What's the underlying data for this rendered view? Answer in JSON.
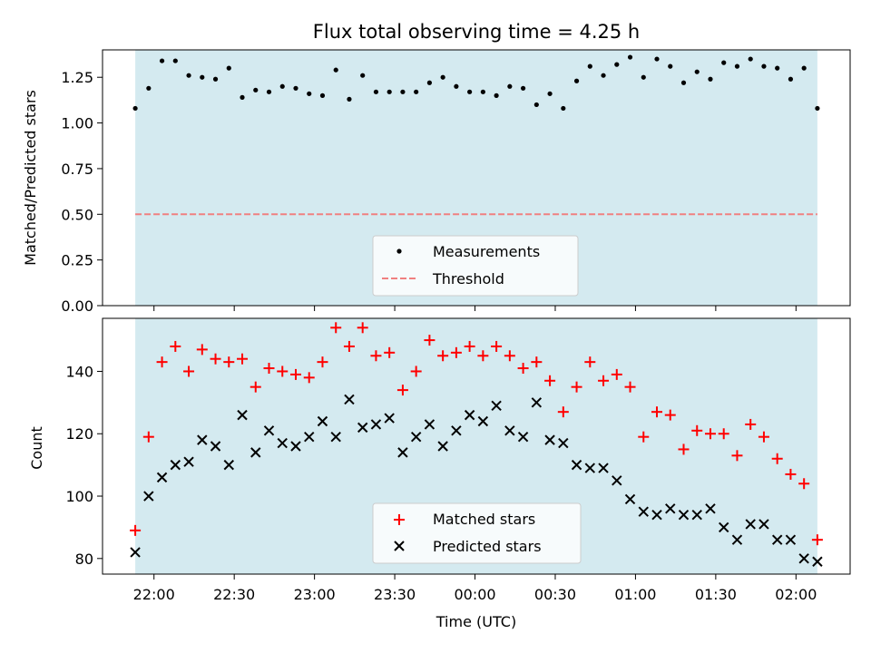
{
  "chart_data": [
    {
      "type": "scatter",
      "title": "Flux total observing time = 4.25 h",
      "xlabel": "",
      "ylabel": "Matched/Predicted stars",
      "ylim": [
        0,
        1.4
      ],
      "y_ticks": [
        0.0,
        0.25,
        0.5,
        0.75,
        1.0,
        1.25
      ],
      "y_tick_labels": [
        "0.00",
        "0.25",
        "0.50",
        "0.75",
        "1.00",
        "1.25"
      ],
      "threshold": 0.5,
      "legend_position": "bottom-center",
      "legend": [
        {
          "label": "Measurements",
          "marker": "dot",
          "color": "#000000"
        },
        {
          "label": "Threshold",
          "marker": "dashed-line",
          "color": "#f08080"
        }
      ],
      "series": [
        {
          "name": "Measurements",
          "x": [
            "21:53",
            "21:58",
            "22:03",
            "22:08",
            "22:13",
            "22:18",
            "22:23",
            "22:28",
            "22:33",
            "22:38",
            "22:43",
            "22:48",
            "22:53",
            "22:58",
            "23:03",
            "23:08",
            "23:13",
            "23:18",
            "23:23",
            "23:28",
            "23:33",
            "23:38",
            "23:43",
            "23:48",
            "23:53",
            "23:58",
            "00:03",
            "00:08",
            "00:13",
            "00:18",
            "00:23",
            "00:28",
            "00:33",
            "00:38",
            "00:43",
            "00:48",
            "00:53",
            "00:58",
            "01:03",
            "01:08",
            "01:13",
            "01:18",
            "01:23",
            "01:28",
            "01:33",
            "01:38",
            "01:43",
            "01:48",
            "01:53",
            "01:58",
            "02:03",
            "02:08"
          ],
          "y": [
            1.08,
            1.19,
            1.34,
            1.34,
            1.26,
            1.25,
            1.24,
            1.3,
            1.14,
            1.18,
            1.17,
            1.2,
            1.19,
            1.16,
            1.15,
            1.29,
            1.13,
            1.26,
            1.17,
            1.17,
            1.17,
            1.17,
            1.22,
            1.25,
            1.2,
            1.17,
            1.17,
            1.15,
            1.2,
            1.19,
            1.1,
            1.16,
            1.08,
            1.23,
            1.31,
            1.26,
            1.32,
            1.36,
            1.25,
            1.35,
            1.31,
            1.22,
            1.28,
            1.24,
            1.33,
            1.31,
            1.35,
            1.31,
            1.3,
            1.24,
            1.3,
            1.08
          ]
        }
      ],
      "shaded_region": {
        "x_start": "21:53",
        "x_end": "02:08",
        "color": "#d4eaf0"
      }
    },
    {
      "type": "scatter",
      "title": "",
      "xlabel": "Time (UTC)",
      "ylabel": "Count",
      "ylim": [
        75,
        157
      ],
      "y_ticks": [
        80,
        100,
        120,
        140
      ],
      "y_tick_labels": [
        "80",
        "100",
        "120",
        "140"
      ],
      "x_tick_labels": [
        "22:00",
        "22:30",
        "23:00",
        "23:30",
        "00:00",
        "00:30",
        "01:00",
        "01:30",
        "02:00"
      ],
      "legend_position": "bottom-center",
      "legend": [
        {
          "label": "Matched stars",
          "marker": "plus",
          "color": "#ff0000"
        },
        {
          "label": "Predicted stars",
          "marker": "x",
          "color": "#000000"
        }
      ],
      "series": [
        {
          "name": "Matched stars",
          "x": [
            "21:53",
            "21:58",
            "22:03",
            "22:08",
            "22:13",
            "22:18",
            "22:23",
            "22:28",
            "22:33",
            "22:38",
            "22:43",
            "22:48",
            "22:53",
            "22:58",
            "23:03",
            "23:08",
            "23:13",
            "23:18",
            "23:23",
            "23:28",
            "23:33",
            "23:38",
            "23:43",
            "23:48",
            "23:53",
            "23:58",
            "00:03",
            "00:08",
            "00:13",
            "00:18",
            "00:23",
            "00:28",
            "00:33",
            "00:38",
            "00:43",
            "00:48",
            "00:53",
            "00:58",
            "01:03",
            "01:08",
            "01:13",
            "01:18",
            "01:23",
            "01:28",
            "01:33",
            "01:38",
            "01:43",
            "01:48",
            "01:53",
            "01:58",
            "02:03",
            "02:08"
          ],
          "y": [
            89,
            119,
            143,
            148,
            140,
            147,
            144,
            143,
            144,
            135,
            141,
            140,
            139,
            138,
            143,
            154,
            148,
            154,
            145,
            146,
            134,
            140,
            150,
            145,
            146,
            148,
            145,
            148,
            145,
            141,
            143,
            137,
            127,
            135,
            143,
            137,
            139,
            135,
            119,
            127,
            126,
            115,
            121,
            120,
            120,
            113,
            123,
            119,
            112,
            107,
            104,
            86
          ]
        },
        {
          "name": "Predicted stars",
          "x": [
            "21:53",
            "21:58",
            "22:03",
            "22:08",
            "22:13",
            "22:18",
            "22:23",
            "22:28",
            "22:33",
            "22:38",
            "22:43",
            "22:48",
            "22:53",
            "22:58",
            "23:03",
            "23:08",
            "23:13",
            "23:18",
            "23:23",
            "23:28",
            "23:33",
            "23:38",
            "23:43",
            "23:48",
            "23:53",
            "23:58",
            "00:03",
            "00:08",
            "00:13",
            "00:18",
            "00:23",
            "00:28",
            "00:33",
            "00:38",
            "00:43",
            "00:48",
            "00:53",
            "00:58",
            "01:03",
            "01:08",
            "01:13",
            "01:18",
            "01:23",
            "01:28",
            "01:33",
            "01:38",
            "01:43",
            "01:48",
            "01:53",
            "01:58",
            "02:03",
            "02:08"
          ],
          "y": [
            82,
            100,
            106,
            110,
            111,
            118,
            116,
            110,
            126,
            114,
            121,
            117,
            116,
            119,
            124,
            119,
            131,
            122,
            123,
            125,
            114,
            119,
            123,
            116,
            121,
            126,
            124,
            129,
            121,
            119,
            130,
            118,
            117,
            110,
            109,
            109,
            105,
            99,
            95,
            94,
            96,
            94,
            94,
            96,
            90,
            86,
            91,
            91,
            86,
            86,
            80,
            79
          ]
        }
      ],
      "shaded_region": {
        "x_start": "21:53",
        "x_end": "02:08",
        "color": "#d4eaf0"
      }
    }
  ]
}
